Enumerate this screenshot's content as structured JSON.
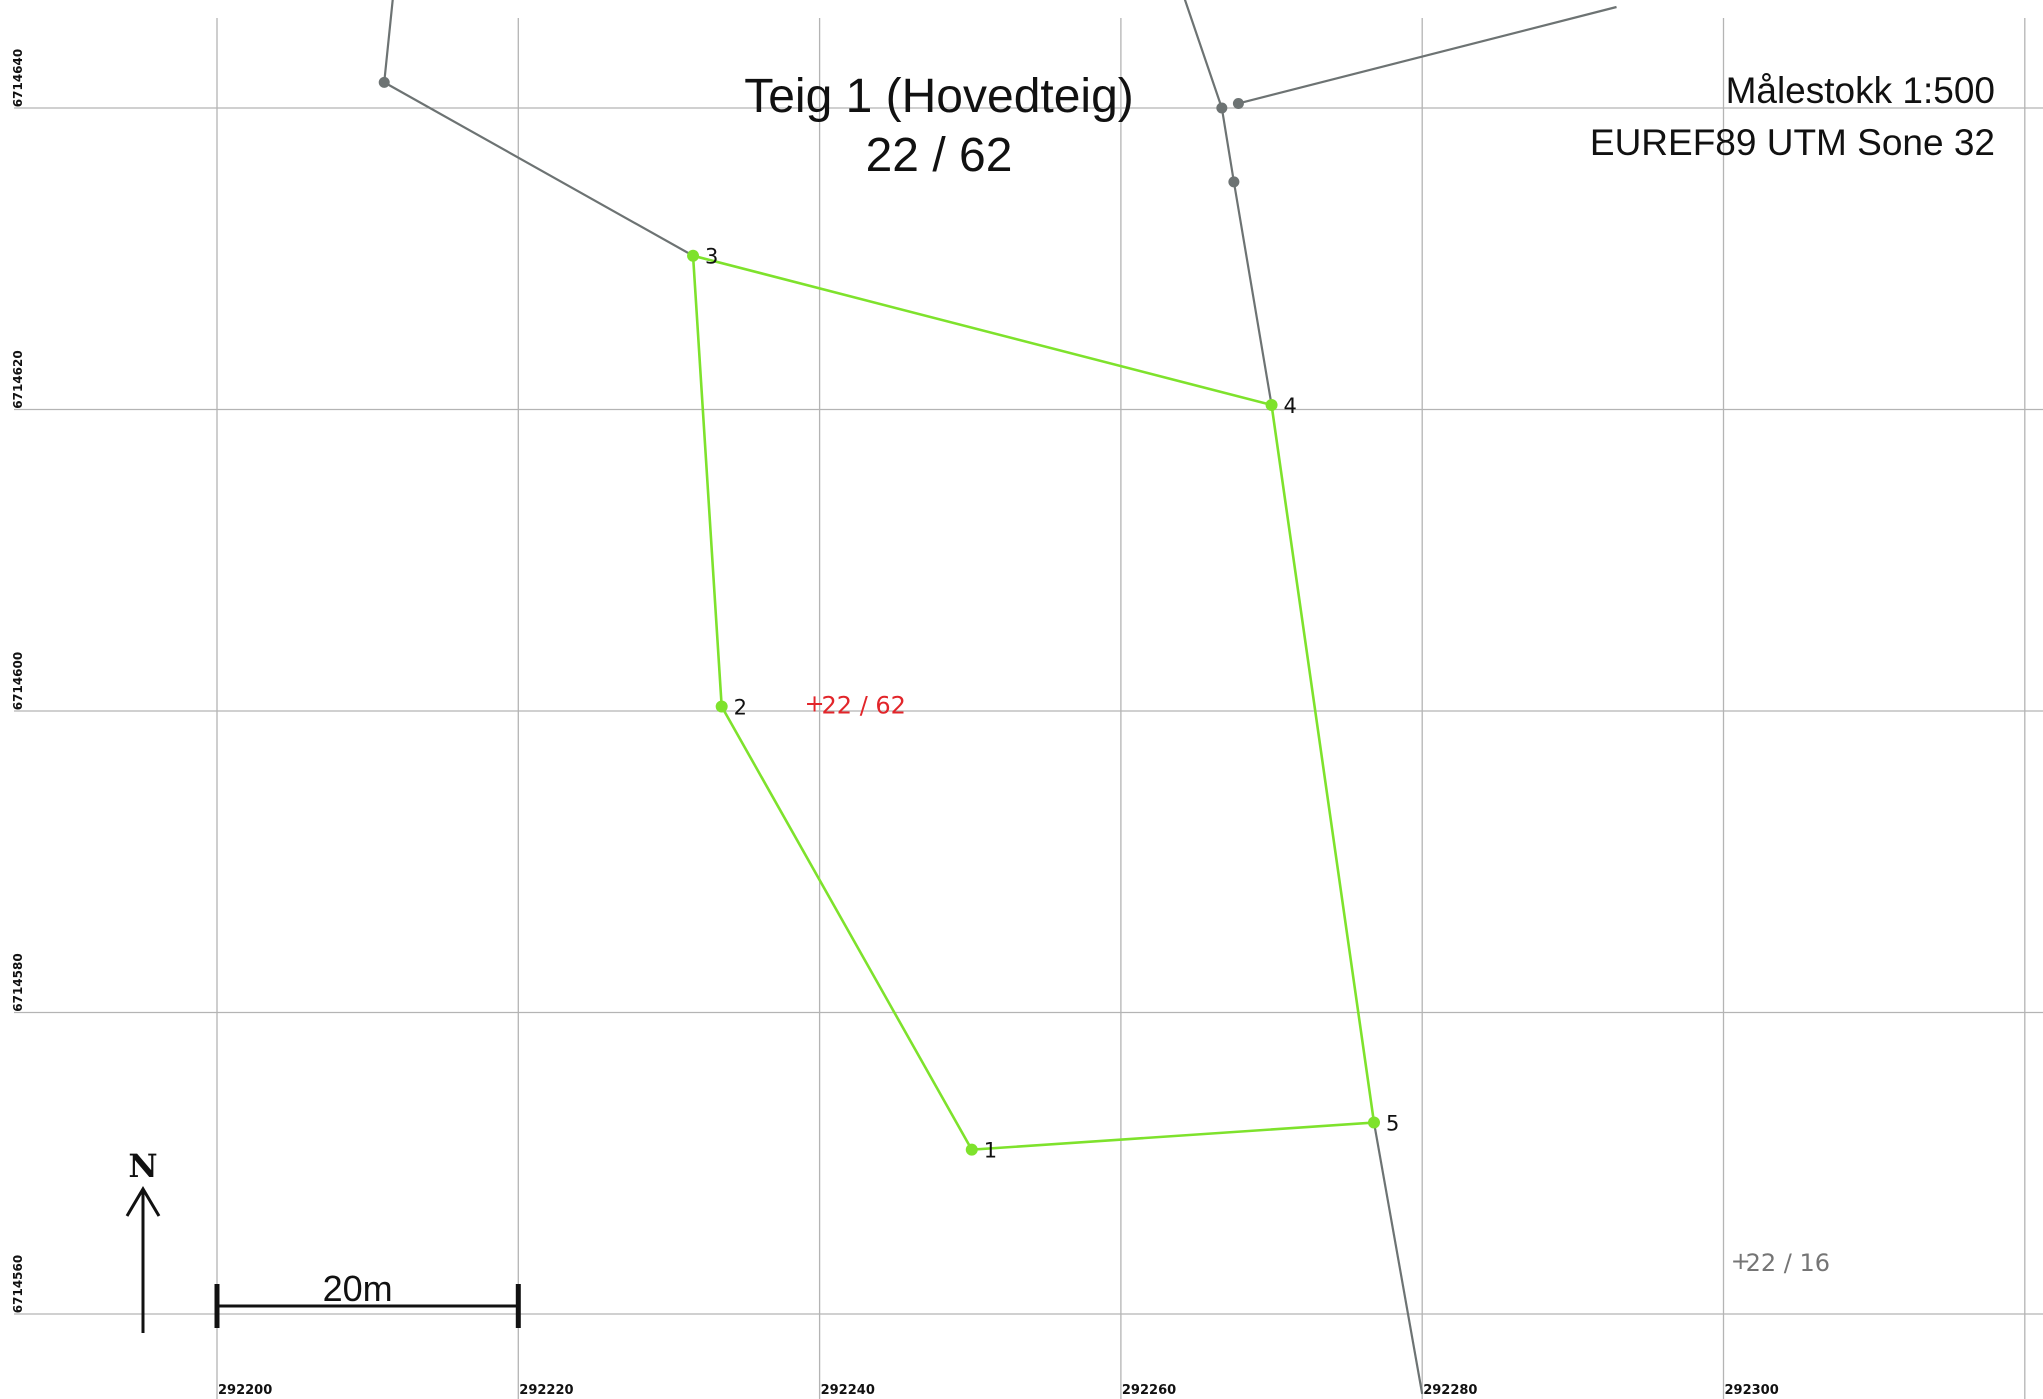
{
  "map": {
    "title": "Teig 1 (Hovedteig)",
    "subtitle": "22 / 62",
    "scale_text": "Målestokk 1:500",
    "projection_text": "EUREF89 UTM Sone 32",
    "x_ticks": [
      "292200",
      "292220",
      "292240",
      "292260",
      "292280",
      "292300"
    ],
    "y_ticks": [
      "6714640",
      "6714620",
      "6714600",
      "6714580",
      "6714560"
    ],
    "extra_grid_x": [
      292320
    ],
    "parcel": {
      "id_label": "22 / 62",
      "id_position": [
        292239,
        6714600.5
      ],
      "color": "#7ee22c",
      "points": [
        {
          "label": "1",
          "x": 292250.1,
          "y": 6714570.9
        },
        {
          "label": "2",
          "x": 292233.5,
          "y": 6714600.3
        },
        {
          "label": "3",
          "x": 292231.6,
          "y": 6714630.2
        },
        {
          "label": "4",
          "x": 292270.0,
          "y": 6714620.3
        },
        {
          "label": "5",
          "x": 292276.8,
          "y": 6714572.7
        }
      ]
    },
    "neighbour_parcel_label": "22 / 16",
    "neighbour_parcel_position": [
      292301,
      6714563.5
    ],
    "neighbour_color": "#6d7373",
    "neighbour_lines": [
      [
        [
          292211.8,
          6714648.5
        ],
        [
          292211.1,
          6714641.7
        ],
        [
          292231.6,
          6714630.2
        ]
      ],
      [
        [
          292263.8,
          6714648.5
        ],
        [
          292266.7,
          6714640.0
        ],
        [
          292267.5,
          6714635.1
        ],
        [
          292270.0,
          6714620.3
        ]
      ],
      [
        [
          292267.8,
          6714640.3
        ],
        [
          292292.9,
          6714646.7
        ]
      ],
      [
        [
          292276.8,
          6714572.7
        ],
        [
          292280.0,
          6714554.7
        ]
      ]
    ],
    "neighbour_nodes": [
      [
        292211.1,
        6714641.7
      ],
      [
        292266.7,
        6714640.0
      ],
      [
        292267.8,
        6714640.3
      ],
      [
        292267.5,
        6714635.1
      ]
    ],
    "scalebar_label": "20m",
    "scalebar_length_m": 20,
    "north_label": "N"
  }
}
